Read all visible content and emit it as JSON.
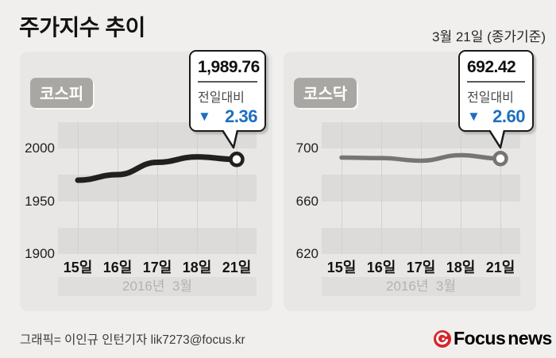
{
  "page": {
    "title": "주가지수 추이",
    "date_note": "3월 21일 (종가기준)"
  },
  "chart_data": [
    {
      "type": "line",
      "name": "코스피",
      "categories": [
        "15일",
        "16일",
        "17일",
        "18일",
        "21일"
      ],
      "values": [
        1970.0,
        1975.3,
        1987.0,
        1992.12,
        1989.76
      ],
      "y_ticks": [
        2000,
        1950,
        1900
      ],
      "ylim": [
        1900,
        2025
      ],
      "x_axis_note": "2016년  3월",
      "grid": "striped-bands",
      "legend": "none",
      "line_color": "#21201d",
      "line_width": 7,
      "callout": {
        "value": "1,989.76",
        "label": "전일대비",
        "direction": "down",
        "arrow": "▼",
        "delta": "2.36",
        "delta_color": "#1e6fbf"
      }
    },
    {
      "type": "line",
      "name": "코스닥",
      "categories": [
        "15일",
        "16일",
        "17일",
        "18일",
        "21일"
      ],
      "values": [
        693.2,
        692.8,
        690.8,
        695.02,
        692.42
      ],
      "y_ticks": [
        700,
        660,
        620
      ],
      "ylim": [
        620,
        720
      ],
      "x_axis_note": "2016년  3월",
      "grid": "striped-bands",
      "legend": "none",
      "line_color": "#777572",
      "line_width": 5.5,
      "callout": {
        "value": "692.42",
        "label": "전일대비",
        "direction": "down",
        "arrow": "▼",
        "delta": "2.60",
        "delta_color": "#1e6fbf"
      }
    }
  ],
  "footer": {
    "credit": "그래픽= 이인규 인턴기자 lik7273@focus.kr",
    "logo": {
      "focus_text": "Focus",
      "news_text": "news",
      "focus_color": "#d6252b",
      "news_color": "#8b8e90",
      "mark_color": "#d6252b"
    }
  }
}
